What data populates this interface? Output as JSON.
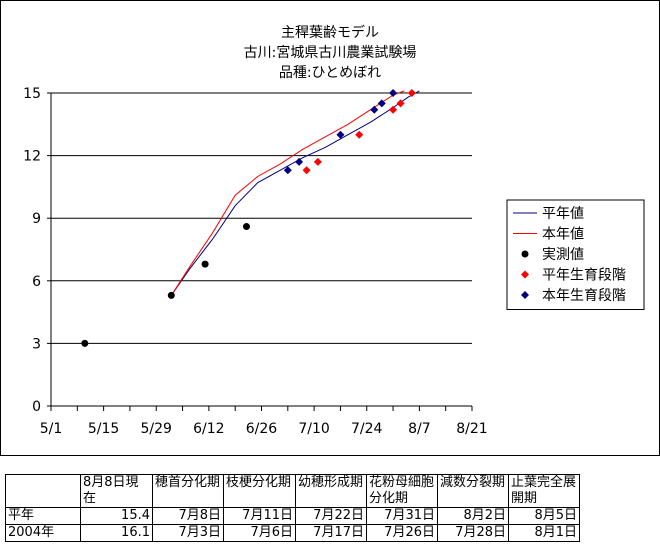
{
  "chart_data": {
    "type": "line",
    "title": [
      "主稈葉齢モデル",
      "古川:宮城県古川農業試験場",
      "品種:ひとめぼれ"
    ],
    "x_tick_labels": [
      "5/1",
      "5/15",
      "5/29",
      "6/12",
      "6/26",
      "7/10",
      "7/24",
      "8/7",
      "8/21"
    ],
    "x_tick_values": [
      0,
      14,
      28,
      42,
      56,
      70,
      84,
      98,
      112
    ],
    "xlim": [
      0,
      112
    ],
    "y_ticks": [
      0,
      3,
      6,
      9,
      12,
      15
    ],
    "ylim": [
      0,
      15
    ],
    "grid": "horizontal",
    "legend_position": "right",
    "series": [
      {
        "name": "平年値",
        "kind": "line",
        "color": "#000080",
        "x": [
          32,
          37,
          43,
          49,
          55,
          61,
          67,
          73,
          79,
          85,
          91,
          95,
          98
        ],
        "y": [
          5.3,
          6.6,
          8.0,
          9.6,
          10.7,
          11.3,
          11.9,
          12.4,
          13.0,
          13.6,
          14.3,
          14.8,
          15.1
        ]
      },
      {
        "name": "本年値",
        "kind": "line",
        "color": "#ff0000",
        "x": [
          32,
          37,
          43,
          49,
          55,
          61,
          67,
          73,
          79,
          85,
          91,
          94
        ],
        "y": [
          5.3,
          6.7,
          8.3,
          10.1,
          11.0,
          11.6,
          12.3,
          12.9,
          13.5,
          14.2,
          14.9,
          15.1
        ]
      },
      {
        "name": "実測値",
        "kind": "scatter",
        "marker": "circle",
        "color": "#000000",
        "x": [
          9,
          32,
          41,
          52
        ],
        "y": [
          3.0,
          5.3,
          6.8,
          8.6
        ]
      },
      {
        "name": "平年生育段階",
        "kind": "scatter",
        "marker": "diamond",
        "color": "#ff0000",
        "x": [
          68,
          71,
          82,
          91,
          93,
          96
        ],
        "y": [
          11.3,
          11.7,
          13.0,
          14.2,
          14.5,
          15.0
        ]
      },
      {
        "name": "本年生育段階",
        "kind": "scatter",
        "marker": "diamond",
        "color": "#000080",
        "x": [
          63,
          66,
          77,
          86,
          88,
          91
        ],
        "y": [
          11.3,
          11.7,
          13.0,
          14.2,
          14.5,
          15.0
        ]
      }
    ]
  },
  "stage_table": {
    "headers": [
      "",
      "8月8日現在",
      "穂首分化期",
      "枝梗分化期",
      "幼穂形成期",
      "花粉母細胞分化期",
      "減数分裂期",
      "止葉完全展開期"
    ],
    "rows": [
      {
        "label": "平年",
        "cells": [
          "15.4",
          "7月8日",
          "7月11日",
          "7月22日",
          "7月31日",
          "8月2日",
          "8月5日"
        ]
      },
      {
        "label": "2004年",
        "cells": [
          "16.1",
          "7月3日",
          "7月6日",
          "7月17日",
          "7月26日",
          "7月28日",
          "8月1日"
        ]
      }
    ]
  }
}
